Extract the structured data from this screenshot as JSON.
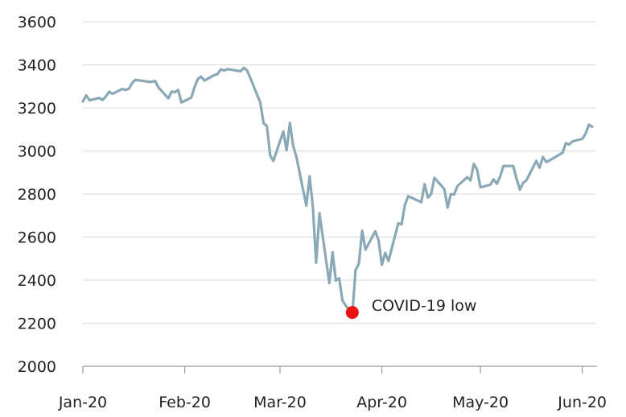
{
  "chart_data": {
    "type": "line",
    "title": "",
    "xlabel": "",
    "ylabel": "",
    "ylim": [
      2000,
      3600
    ],
    "yticks": [
      2000,
      2200,
      2400,
      2600,
      2800,
      3000,
      3200,
      3400,
      3600
    ],
    "xlim": [
      "2020-01-01",
      "2020-06-05"
    ],
    "xticks": [
      {
        "date": "2020-01-01",
        "label": "Jan-20"
      },
      {
        "date": "2020-02-01",
        "label": "Feb-20"
      },
      {
        "date": "2020-03-01",
        "label": "Mar-20"
      },
      {
        "date": "2020-04-01",
        "label": "Apr-20"
      },
      {
        "date": "2020-05-01",
        "label": "May-20"
      },
      {
        "date": "2020-06-01",
        "label": "Jun-20"
      }
    ],
    "grid": "horizontal",
    "line_color": "#8aa9b6",
    "marker_color": "#ee1111",
    "series": [
      {
        "points": [
          [
            "2020-01-01",
            3230
          ],
          [
            "2020-01-02",
            3258
          ],
          [
            "2020-01-03",
            3235
          ],
          [
            "2020-01-06",
            3246
          ],
          [
            "2020-01-07",
            3237
          ],
          [
            "2020-01-08",
            3253
          ],
          [
            "2020-01-09",
            3275
          ],
          [
            "2020-01-10",
            3265
          ],
          [
            "2020-01-13",
            3288
          ],
          [
            "2020-01-14",
            3283
          ],
          [
            "2020-01-15",
            3289
          ],
          [
            "2020-01-16",
            3316
          ],
          [
            "2020-01-17",
            3330
          ],
          [
            "2020-01-21",
            3321
          ],
          [
            "2020-01-22",
            3321
          ],
          [
            "2020-01-23",
            3325
          ],
          [
            "2020-01-24",
            3295
          ],
          [
            "2020-01-27",
            3244
          ],
          [
            "2020-01-28",
            3276
          ],
          [
            "2020-01-29",
            3273
          ],
          [
            "2020-01-30",
            3283
          ],
          [
            "2020-01-31",
            3225
          ],
          [
            "2020-02-03",
            3248
          ],
          [
            "2020-02-04",
            3297
          ],
          [
            "2020-02-05",
            3334
          ],
          [
            "2020-02-06",
            3345
          ],
          [
            "2020-02-07",
            3327
          ],
          [
            "2020-02-10",
            3352
          ],
          [
            "2020-02-11",
            3357
          ],
          [
            "2020-02-12",
            3379
          ],
          [
            "2020-02-13",
            3373
          ],
          [
            "2020-02-14",
            3380
          ],
          [
            "2020-02-18",
            3370
          ],
          [
            "2020-02-19",
            3386
          ],
          [
            "2020-02-20",
            3373
          ],
          [
            "2020-02-21",
            3337
          ],
          [
            "2020-02-24",
            3225
          ],
          [
            "2020-02-25",
            3128
          ],
          [
            "2020-02-26",
            3116
          ],
          [
            "2020-02-27",
            2979
          ],
          [
            "2020-02-28",
            2954
          ],
          [
            "2020-03-02",
            3090
          ],
          [
            "2020-03-03",
            3003
          ],
          [
            "2020-03-04",
            3130
          ],
          [
            "2020-03-05",
            3024
          ],
          [
            "2020-03-06",
            2972
          ],
          [
            "2020-03-09",
            2746
          ],
          [
            "2020-03-10",
            2882
          ],
          [
            "2020-03-11",
            2741
          ],
          [
            "2020-03-12",
            2481
          ],
          [
            "2020-03-13",
            2711
          ],
          [
            "2020-03-16",
            2386
          ],
          [
            "2020-03-17",
            2529
          ],
          [
            "2020-03-18",
            2398
          ],
          [
            "2020-03-19",
            2409
          ],
          [
            "2020-03-20",
            2305
          ],
          [
            "2020-03-23",
            2237
          ],
          [
            "2020-03-24",
            2447
          ],
          [
            "2020-03-25",
            2476
          ],
          [
            "2020-03-26",
            2630
          ],
          [
            "2020-03-27",
            2541
          ],
          [
            "2020-03-30",
            2627
          ],
          [
            "2020-03-31",
            2585
          ],
          [
            "2020-04-01",
            2471
          ],
          [
            "2020-04-02",
            2527
          ],
          [
            "2020-04-03",
            2489
          ],
          [
            "2020-04-06",
            2664
          ],
          [
            "2020-04-07",
            2659
          ],
          [
            "2020-04-08",
            2750
          ],
          [
            "2020-04-09",
            2790
          ],
          [
            "2020-04-13",
            2762
          ],
          [
            "2020-04-14",
            2846
          ],
          [
            "2020-04-15",
            2783
          ],
          [
            "2020-04-16",
            2800
          ],
          [
            "2020-04-17",
            2875
          ],
          [
            "2020-04-20",
            2823
          ],
          [
            "2020-04-21",
            2737
          ],
          [
            "2020-04-22",
            2799
          ],
          [
            "2020-04-23",
            2798
          ],
          [
            "2020-04-24",
            2837
          ],
          [
            "2020-04-27",
            2878
          ],
          [
            "2020-04-28",
            2863
          ],
          [
            "2020-04-29",
            2940
          ],
          [
            "2020-04-30",
            2912
          ],
          [
            "2020-05-01",
            2831
          ],
          [
            "2020-05-04",
            2843
          ],
          [
            "2020-05-05",
            2868
          ],
          [
            "2020-05-06",
            2848
          ],
          [
            "2020-05-07",
            2882
          ],
          [
            "2020-05-08",
            2930
          ],
          [
            "2020-05-11",
            2930
          ],
          [
            "2020-05-12",
            2870
          ],
          [
            "2020-05-13",
            2820
          ],
          [
            "2020-05-14",
            2852
          ],
          [
            "2020-05-15",
            2864
          ],
          [
            "2020-05-18",
            2954
          ],
          [
            "2020-05-19",
            2922
          ],
          [
            "2020-05-20",
            2972
          ],
          [
            "2020-05-21",
            2949
          ],
          [
            "2020-05-22",
            2955
          ],
          [
            "2020-05-26",
            2992
          ],
          [
            "2020-05-27",
            3036
          ],
          [
            "2020-05-28",
            3030
          ],
          [
            "2020-05-29",
            3044
          ],
          [
            "2020-06-01",
            3056
          ],
          [
            "2020-06-02",
            3080
          ],
          [
            "2020-06-03",
            3122
          ],
          [
            "2020-06-04",
            3112
          ]
        ]
      }
    ],
    "annotations": [
      {
        "date": "2020-03-23",
        "value": 2250,
        "text": "COVID-19 low"
      }
    ]
  }
}
